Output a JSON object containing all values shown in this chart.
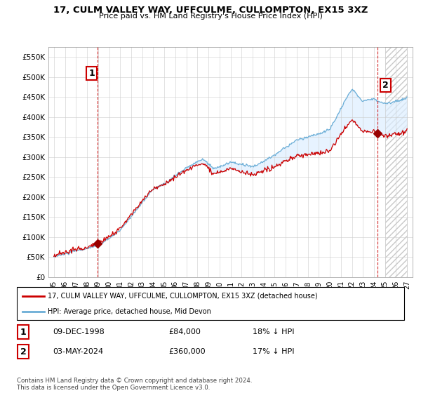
{
  "title": "17, CULM VALLEY WAY, UFFCULME, CULLOMPTON, EX15 3XZ",
  "subtitle": "Price paid vs. HM Land Registry's House Price Index (HPI)",
  "hpi_color": "#6baed6",
  "price_color": "#cc0000",
  "vline1_x": 1998.92,
  "vline2_x": 2024.34,
  "annotation1_label": "1",
  "annotation2_label": "2",
  "sale1_price": 84000,
  "sale2_price": 360000,
  "sale1_hpi_ratio": 0.82,
  "sale2_hpi_ratio": 0.83,
  "ylim": [
    0,
    575000
  ],
  "xlim": [
    1994.5,
    2027.5
  ],
  "yticks": [
    0,
    50000,
    100000,
    150000,
    200000,
    250000,
    300000,
    350000,
    400000,
    450000,
    500000,
    550000
  ],
  "ytick_labels": [
    "£0",
    "£50K",
    "£100K",
    "£150K",
    "£200K",
    "£250K",
    "£300K",
    "£350K",
    "£400K",
    "£450K",
    "£500K",
    "£550K"
  ],
  "xtick_years": [
    1995,
    1996,
    1997,
    1998,
    1999,
    2000,
    2001,
    2002,
    2003,
    2004,
    2005,
    2006,
    2007,
    2008,
    2009,
    2010,
    2011,
    2012,
    2013,
    2014,
    2015,
    2016,
    2017,
    2018,
    2019,
    2020,
    2021,
    2022,
    2023,
    2024,
    2025,
    2026,
    2027
  ],
  "legend_line1": "17, CULM VALLEY WAY, UFFCULME, CULLOMPTON, EX15 3XZ (detached house)",
  "legend_line2": "HPI: Average price, detached house, Mid Devon",
  "table_row1": [
    "1",
    "09-DEC-1998",
    "£84,000",
    "18% ↓ HPI"
  ],
  "table_row2": [
    "2",
    "03-MAY-2024",
    "£360,000",
    "17% ↓ HPI"
  ],
  "footer": "Contains HM Land Registry data © Crown copyright and database right 2024.\nThis data is licensed under the Open Government Licence v3.0.",
  "background_color": "#ffffff",
  "fill_color": "#ddeeff",
  "grid_color": "#cccccc",
  "hatch_start": 2025.0
}
